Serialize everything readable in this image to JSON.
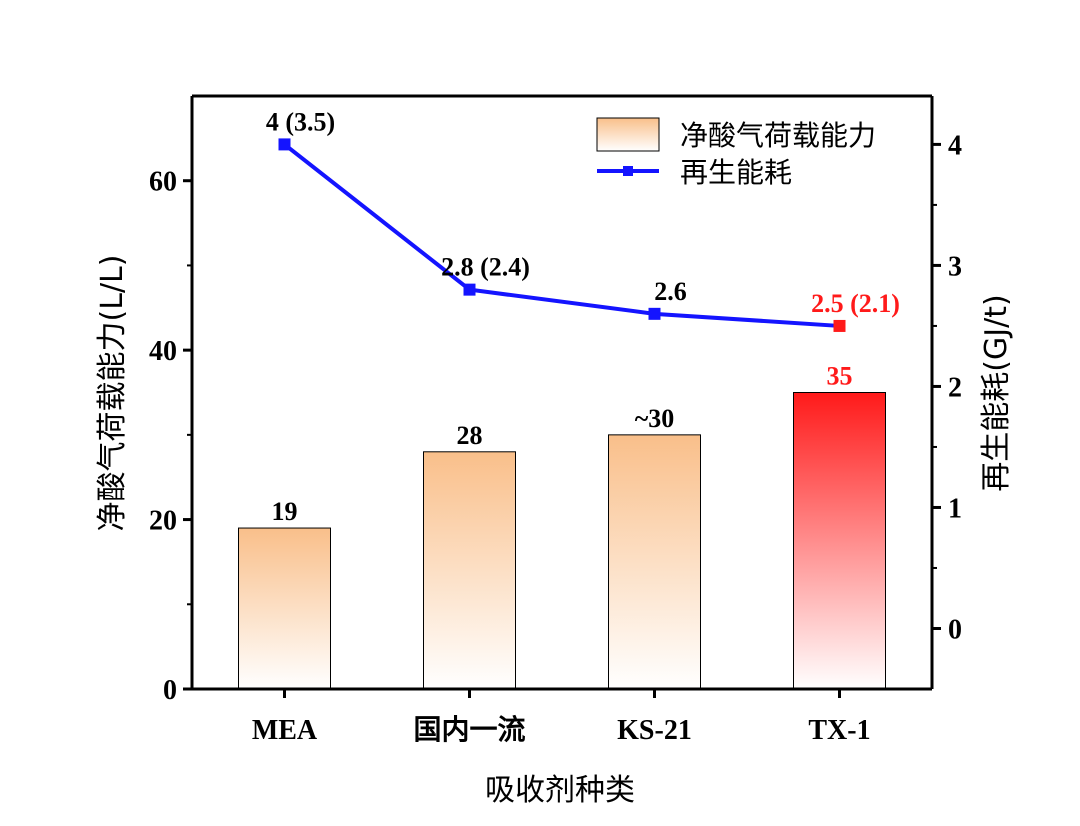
{
  "chart_data": {
    "type": "bar+line",
    "categories": [
      "MEA",
      "国内一流",
      "KS-21",
      "TX-1"
    ],
    "xlabel": "吸收剂种类",
    "ylabel_left": "净酸气荷载能力(L/L)",
    "ylabel_right": "再生能耗(GJ/t)",
    "ylim_left": [
      0,
      70
    ],
    "ylim_right": [
      -0.5,
      4.4
    ],
    "yticks_left": [
      "0",
      "20",
      "40",
      "60"
    ],
    "yticks_right": [
      "0",
      "1",
      "2",
      "3",
      "4"
    ],
    "series": [
      {
        "name": "净酸气荷载能力",
        "kind": "bar",
        "axis": "left",
        "values": [
          19,
          28,
          30,
          35
        ],
        "labels": [
          "19",
          "28",
          "~30",
          "35"
        ],
        "colors": [
          "#f9bf8a",
          "#f9bf8a",
          "#f9bf8a",
          "#ff1a1a"
        ]
      },
      {
        "name": "再生能耗",
        "kind": "line",
        "axis": "right",
        "values": [
          4,
          2.8,
          2.6,
          2.5
        ],
        "labels": [
          "4 (3.5)",
          "2.8 (2.4)",
          "2.6",
          "2.5 (2.1)"
        ],
        "color": "#1414ff",
        "highlight_color": "#ff1a1a"
      }
    ],
    "legend_position": "top-right",
    "highlight_category": "TX-1"
  }
}
